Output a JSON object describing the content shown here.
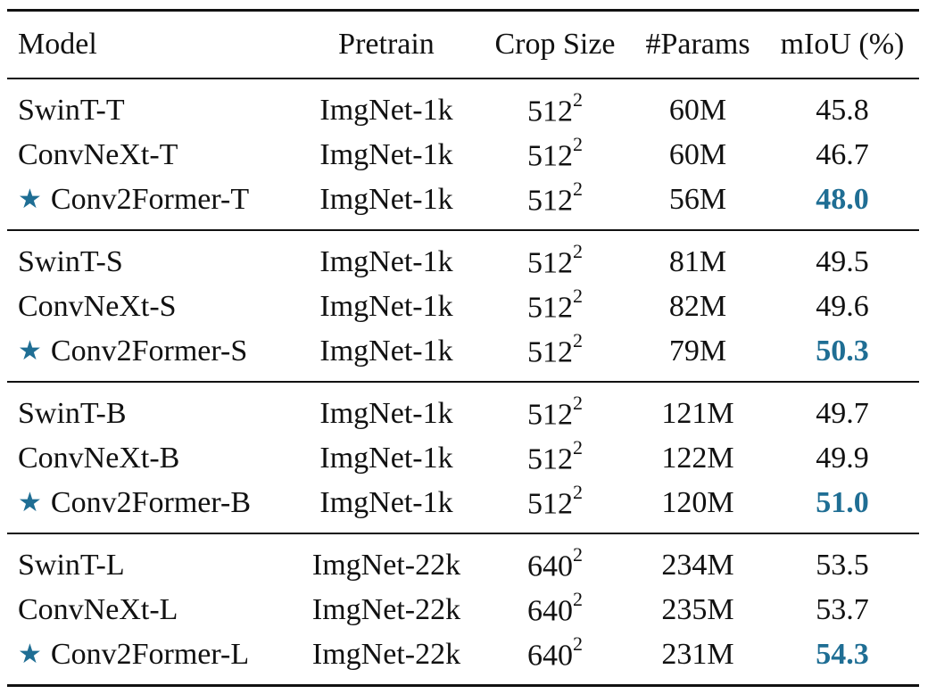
{
  "columns": {
    "model": "Model",
    "pretrain": "Pretrain",
    "crop_size": "Crop Size",
    "params": "#Params",
    "miou": "mIoU (%)"
  },
  "groups": [
    {
      "rows": [
        {
          "model": "SwinT-T",
          "pretrain": "ImgNet-1k",
          "crop_base": "512",
          "crop_exp": "2",
          "params": "60M",
          "miou": "45.8",
          "star": false,
          "best": false
        },
        {
          "model": "ConvNeXt-T",
          "pretrain": "ImgNet-1k",
          "crop_base": "512",
          "crop_exp": "2",
          "params": "60M",
          "miou": "46.7",
          "star": false,
          "best": false
        },
        {
          "model": "Conv2Former-T",
          "pretrain": "ImgNet-1k",
          "crop_base": "512",
          "crop_exp": "2",
          "params": "56M",
          "miou": "48.0",
          "star": true,
          "best": true
        }
      ]
    },
    {
      "rows": [
        {
          "model": "SwinT-S",
          "pretrain": "ImgNet-1k",
          "crop_base": "512",
          "crop_exp": "2",
          "params": "81M",
          "miou": "49.5",
          "star": false,
          "best": false
        },
        {
          "model": "ConvNeXt-S",
          "pretrain": "ImgNet-1k",
          "crop_base": "512",
          "crop_exp": "2",
          "params": "82M",
          "miou": "49.6",
          "star": false,
          "best": false
        },
        {
          "model": "Conv2Former-S",
          "pretrain": "ImgNet-1k",
          "crop_base": "512",
          "crop_exp": "2",
          "params": "79M",
          "miou": "50.3",
          "star": true,
          "best": true
        }
      ]
    },
    {
      "rows": [
        {
          "model": "SwinT-B",
          "pretrain": "ImgNet-1k",
          "crop_base": "512",
          "crop_exp": "2",
          "params": "121M",
          "miou": "49.7",
          "star": false,
          "best": false
        },
        {
          "model": "ConvNeXt-B",
          "pretrain": "ImgNet-1k",
          "crop_base": "512",
          "crop_exp": "2",
          "params": "122M",
          "miou": "49.9",
          "star": false,
          "best": false
        },
        {
          "model": "Conv2Former-B",
          "pretrain": "ImgNet-1k",
          "crop_base": "512",
          "crop_exp": "2",
          "params": "120M",
          "miou": "51.0",
          "star": true,
          "best": true
        }
      ]
    },
    {
      "rows": [
        {
          "model": "SwinT-L",
          "pretrain": "ImgNet-22k",
          "crop_base": "640",
          "crop_exp": "2",
          "params": "234M",
          "miou": "53.5",
          "star": false,
          "best": false
        },
        {
          "model": "ConvNeXt-L",
          "pretrain": "ImgNet-22k",
          "crop_base": "640",
          "crop_exp": "2",
          "params": "235M",
          "miou": "53.7",
          "star": false,
          "best": false
        },
        {
          "model": "Conv2Former-L",
          "pretrain": "ImgNet-22k",
          "crop_base": "640",
          "crop_exp": "2",
          "params": "231M",
          "miou": "54.3",
          "star": true,
          "best": true
        }
      ]
    }
  ],
  "icons": {
    "highlight": "star-icon"
  },
  "colors": {
    "highlight": "#1f6e94",
    "text": "#111111"
  }
}
